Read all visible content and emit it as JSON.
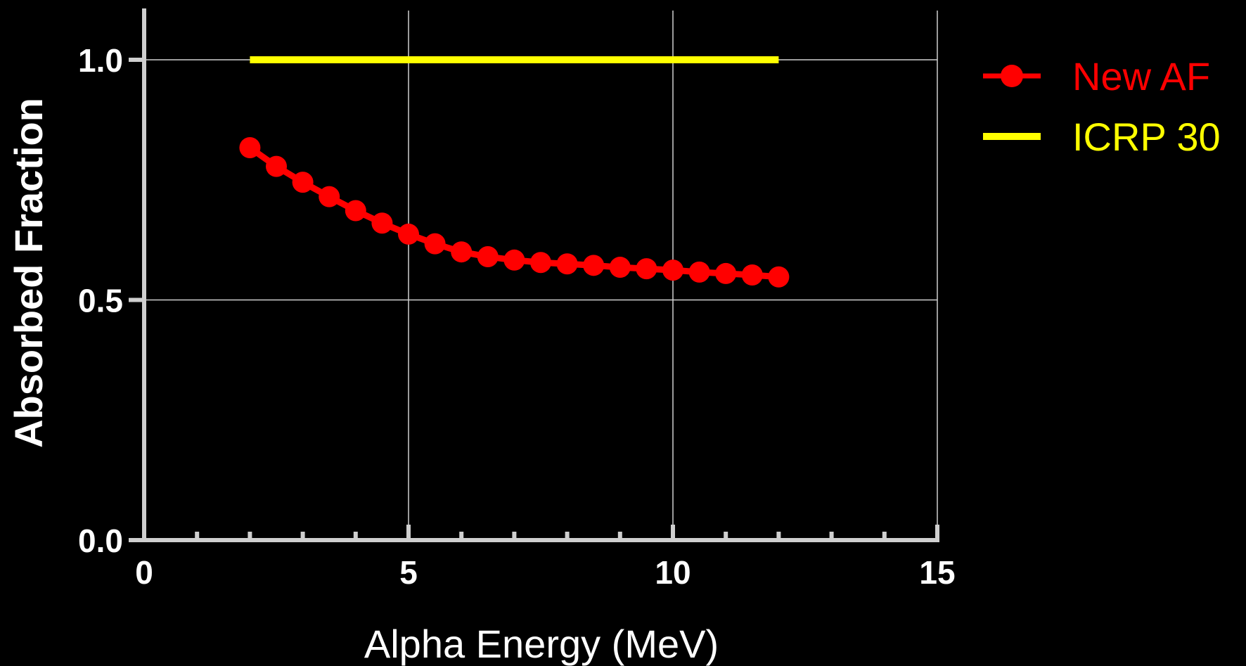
{
  "chart_data": {
    "type": "line",
    "title": "",
    "xlabel": "Alpha Energy (MeV)",
    "ylabel": "Absorbed Fraction",
    "xlim": [
      0,
      15
    ],
    "ylim": [
      0,
      1.0
    ],
    "x_ticks": [
      "0",
      "5",
      "10",
      "15"
    ],
    "y_ticks": [
      "0.0",
      "0.5",
      "1.0"
    ],
    "grid": true,
    "legend_position": "top-right",
    "background": "#000000",
    "series": [
      {
        "name": "New AF",
        "color": "#ff0000",
        "marker": "circle",
        "x": [
          2,
          2.5,
          3,
          3.5,
          4,
          4.5,
          5,
          5.5,
          6,
          6.5,
          7,
          7.5,
          8,
          8.5,
          9,
          9.5,
          10,
          10.5,
          11,
          11.5,
          12
        ],
        "y": [
          0.817,
          0.778,
          0.745,
          0.715,
          0.686,
          0.66,
          0.637,
          0.617,
          0.6,
          0.59,
          0.583,
          0.578,
          0.575,
          0.572,
          0.568,
          0.565,
          0.562,
          0.558,
          0.555,
          0.552,
          0.548
        ]
      },
      {
        "name": "ICRP 30",
        "color": "#ffff00",
        "marker": "none",
        "x": [
          2,
          12
        ],
        "y": [
          1.0,
          1.0
        ]
      }
    ]
  }
}
